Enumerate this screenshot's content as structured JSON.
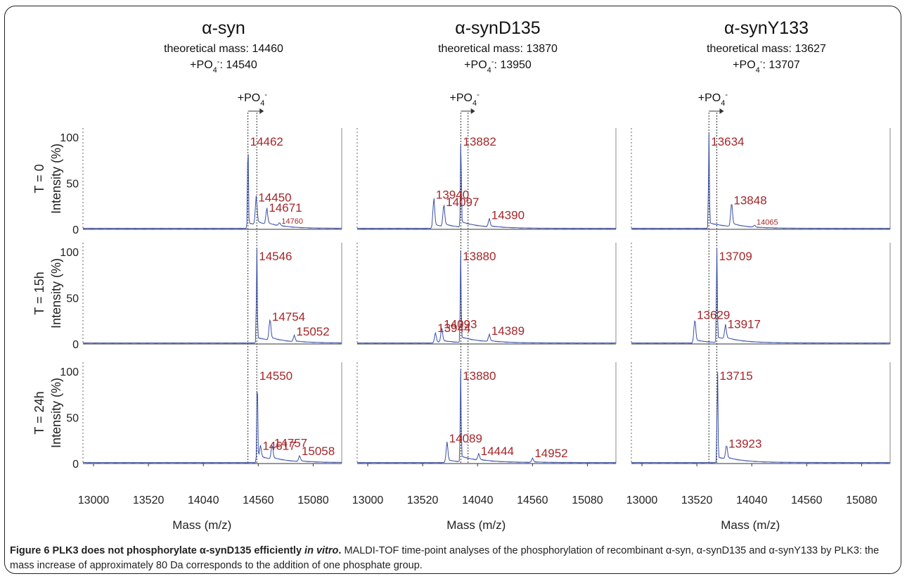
{
  "caption": {
    "label": "Figure 6",
    "title_start": "PLK3 does not phosphorylate α-synD135 efficiently",
    "title_italic": "in vitro",
    "title_end": ".",
    "text": "MALDI-TOF time-point analyses of the phosphorylation of recombinant α-syn, α-synD135 and α-synY133 by PLK3: the mass increase of approximately 80 Da corresponds to the addition of one phosphate group."
  },
  "columns": [
    {
      "title": "α-syn",
      "theoretical": "theoretical mass: 14460",
      "po4": "+PO",
      "po4_value": ": 14540"
    },
    {
      "title": "α-synD135",
      "theoretical": "theoretical mass: 13870",
      "po4": "+PO",
      "po4_value": ": 13950"
    },
    {
      "title": "α-synY133",
      "theoretical": "theoretical mass: 13627",
      "po4": "+PO",
      "po4_value": ": 13707"
    }
  ],
  "po4_marker": "+PO",
  "rows": [
    {
      "time": "T = 0",
      "ylabel": "Intensity (%)"
    },
    {
      "time": "T = 15h",
      "ylabel": "Intensity (%)"
    },
    {
      "time": "T = 24h",
      "ylabel": "Intensity (%)"
    }
  ],
  "x_ticks": [
    [
      "13000",
      "13520",
      "14040",
      "14560",
      "15080"
    ],
    [
      "13000",
      "13520",
      "14040",
      "14560",
      "15080"
    ],
    [
      "13000",
      "13520",
      "14040",
      "14560",
      "15080"
    ]
  ],
  "xlabel": "Mass (m/z)",
  "y_ticks": [
    "0",
    "50",
    "100"
  ],
  "chart_data": {
    "type": "line",
    "xlabel": "Mass (m/z)",
    "ylabel": "Intensity (%)",
    "xlim": [
      12900,
      15350
    ],
    "ylim": [
      0,
      110
    ],
    "columns": [
      "α-syn",
      "α-synD135",
      "α-synY133"
    ],
    "rows": [
      "T = 0",
      "T = 15h",
      "T = 24h"
    ],
    "panels": [
      {
        "column": 0,
        "row": 0,
        "peaks": [
          {
            "mass": 14462,
            "intensity": 100,
            "label": "14462"
          },
          {
            "mass": 14450,
            "intensity": 27,
            "label": "14450",
            "show_mass": 14540
          },
          {
            "mass": 14671,
            "intensity": 16,
            "label": "14671",
            "show_mass": 14640
          },
          {
            "mass": 14760,
            "intensity": 3,
            "label": "14760",
            "small": true
          }
        ]
      },
      {
        "column": 1,
        "row": 0,
        "peaks": [
          {
            "mass": 13882,
            "intensity": 100,
            "label": "13882"
          },
          {
            "mass": 13940,
            "intensity": 30,
            "label": "13940",
            "show_mass": 13625
          },
          {
            "mass": 14097,
            "intensity": 22,
            "label": "14097",
            "show_mass": 13720
          },
          {
            "mass": 14390,
            "intensity": 8,
            "label": "14390",
            "show_mass": 14150
          }
        ]
      },
      {
        "column": 2,
        "row": 0,
        "peaks": [
          {
            "mass": 13634,
            "intensity": 100,
            "label": "13634"
          },
          {
            "mass": 13848,
            "intensity": 24,
            "label": "13848"
          },
          {
            "mass": 14065,
            "intensity": 2,
            "label": "14065",
            "small": true
          }
        ]
      },
      {
        "column": 0,
        "row": 1,
        "peaks": [
          {
            "mass": 14546,
            "intensity": 100,
            "label": "14546"
          },
          {
            "mass": 14754,
            "intensity": 22,
            "label": "14754",
            "show_mass": 14670
          },
          {
            "mass": 15052,
            "intensity": 6,
            "label": "15052",
            "show_mass": 14900
          }
        ]
      },
      {
        "column": 1,
        "row": 1,
        "peaks": [
          {
            "mass": 13880,
            "intensity": 100,
            "label": "13880"
          },
          {
            "mass": 14093,
            "intensity": 14,
            "label": "14093",
            "show_mass": 13700
          },
          {
            "mass": 13944,
            "intensity": 10,
            "label": "13944",
            "show_mass": 13640
          },
          {
            "mass": 14389,
            "intensity": 7,
            "label": "14389",
            "show_mass": 14150
          }
        ]
      },
      {
        "column": 2,
        "row": 1,
        "peaks": [
          {
            "mass": 13709,
            "intensity": 100,
            "label": "13709"
          },
          {
            "mass": 13629,
            "intensity": 24,
            "label": "13629",
            "show_mass": 13500
          },
          {
            "mass": 13917,
            "intensity": 14,
            "label": "13917",
            "show_mass": 13790
          }
        ]
      },
      {
        "column": 0,
        "row": 2,
        "peaks": [
          {
            "mass": 14550,
            "intensity": 100,
            "label": "14550"
          },
          {
            "mass": 14757,
            "intensity": 15,
            "label": "14757",
            "show_mass": 14690
          },
          {
            "mass": 14617,
            "intensity": 12,
            "label": "14617",
            "show_mass": 14580
          },
          {
            "mass": 15058,
            "intensity": 6,
            "label": "15058",
            "show_mass": 14950
          }
        ]
      },
      {
        "column": 1,
        "row": 2,
        "peaks": [
          {
            "mass": 13880,
            "intensity": 100,
            "label": "13880"
          },
          {
            "mass": 14089,
            "intensity": 20,
            "label": "14089",
            "show_mass": 13750
          },
          {
            "mass": 14444,
            "intensity": 6,
            "label": "14444",
            "show_mass": 14050
          },
          {
            "mass": 14952,
            "intensity": 4,
            "label": "14952",
            "show_mass": 14560
          }
        ]
      },
      {
        "column": 2,
        "row": 2,
        "peaks": [
          {
            "mass": 13715,
            "intensity": 100,
            "label": "13715"
          },
          {
            "mass": 13923,
            "intensity": 14,
            "label": "13923",
            "show_mass": 13800
          }
        ]
      }
    ],
    "line_color": "#3a4fa8",
    "label_color": "#a5262a"
  }
}
